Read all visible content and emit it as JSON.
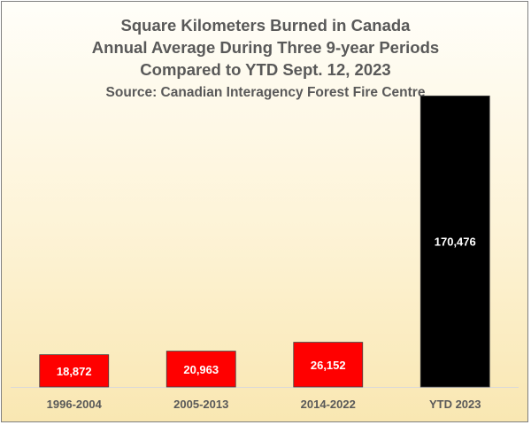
{
  "chart_data": {
    "type": "bar",
    "title": "Square Kilometers Burned in Canada",
    "subtitle_lines": [
      "Annual Average During Three 9-year Periods",
      "Compared to YTD Sept. 12, 2023"
    ],
    "source": "Source: Canadian Interagency Forest Fire Centre",
    "categories": [
      "1996-2004",
      "2005-2013",
      "2014-2022",
      "YTD 2023"
    ],
    "values": [
      18872,
      20963,
      26152,
      170476
    ],
    "data_labels": [
      "18,872",
      "20,963",
      "26,152",
      "170,476"
    ],
    "bar_colors": [
      "#ff0000",
      "#ff0000",
      "#ff0000",
      "#000000"
    ],
    "ylim": [
      0,
      180000
    ],
    "grid": false,
    "legend": "none",
    "xlabel": "",
    "ylabel": ""
  },
  "colors": {
    "text": "#595959",
    "background_top": "#fffef9",
    "background_bottom": "#f9e7b2"
  }
}
